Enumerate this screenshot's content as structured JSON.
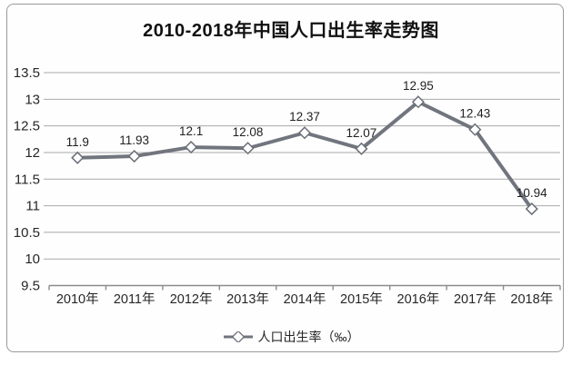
{
  "chart_data": {
    "type": "line",
    "title": "2010-2018年中国人口出生率走势图",
    "categories": [
      "2010年",
      "2011年",
      "2012年",
      "2013年",
      "2014年",
      "2015年",
      "2016年",
      "2017年",
      "2018年"
    ],
    "series": [
      {
        "name": "人口出生率（‰）",
        "values": [
          11.9,
          11.93,
          12.1,
          12.08,
          12.37,
          12.07,
          12.95,
          12.43,
          10.94
        ]
      }
    ],
    "data_labels": [
      "11.9",
      "11.93",
      "12.1",
      "12.08",
      "12.37",
      "12.07",
      "12.95",
      "12.43",
      "10.94"
    ],
    "xlabel": "",
    "ylabel": "",
    "ylim": [
      9.5,
      13.5
    ],
    "y_ticks": [
      13.5,
      13,
      12.5,
      12,
      11.5,
      11,
      10.5,
      10,
      9.5
    ],
    "y_tick_labels": [
      "13.5",
      "13",
      "12.5",
      "12",
      "11.5",
      "11",
      "10.5",
      "10",
      "9.5"
    ],
    "grid": true,
    "legend_position": "bottom",
    "legend_label": "人口出生率（‰）",
    "marker": "diamond",
    "colors": {
      "line": "#71757e",
      "marker_fill": "#ffffff",
      "marker_stroke": "#6a6e77",
      "grid": "#a9a9a9",
      "axis": "#8c8c8c",
      "text": "#262626",
      "data_label": "#1f1f1f"
    }
  }
}
